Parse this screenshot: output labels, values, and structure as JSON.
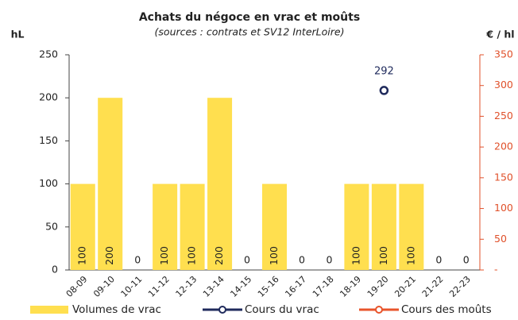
{
  "chart_data": {
    "type": "bar",
    "title": "Achats du négoce en vrac et moûts",
    "subtitle": "(sources : contrats et SV12 InterLoire)",
    "ylabel": "hL",
    "y2label": "€ / hl",
    "categories": [
      "08-09",
      "09-10",
      "10-11",
      "11-12",
      "12-13",
      "13-14",
      "14-15",
      "15-16",
      "16-17",
      "17-18",
      "18-19",
      "19-20",
      "20-21",
      "21-22",
      "22-23"
    ],
    "series": [
      {
        "name": "Volumes de vrac",
        "type": "bar",
        "color": "#ffdf4f",
        "values": [
          100,
          200,
          0,
          100,
          100,
          200,
          0,
          100,
          0,
          0,
          100,
          100,
          100,
          0,
          0
        ]
      },
      {
        "name": "Cours du vrac",
        "type": "line",
        "axis": "y2",
        "color": "#1f2a5c",
        "values": [
          null,
          null,
          null,
          null,
          null,
          null,
          null,
          null,
          null,
          null,
          null,
          292,
          null,
          null,
          null
        ]
      },
      {
        "name": "Cours des moûts",
        "type": "line",
        "axis": "y2",
        "color": "#e8542b",
        "values": [
          null,
          null,
          null,
          null,
          null,
          null,
          null,
          null,
          null,
          null,
          null,
          null,
          null,
          null,
          null
        ]
      }
    ],
    "ylim": [
      0,
      250
    ],
    "yticks": [
      0,
      50,
      100,
      150,
      200,
      250
    ],
    "y2lim": [
      0,
      350
    ],
    "y2ticks": [
      {
        "value": 0,
        "label": "-"
      },
      50,
      100,
      150,
      200,
      250,
      300,
      350
    ],
    "y2color": "#e0502a",
    "grid": false
  }
}
